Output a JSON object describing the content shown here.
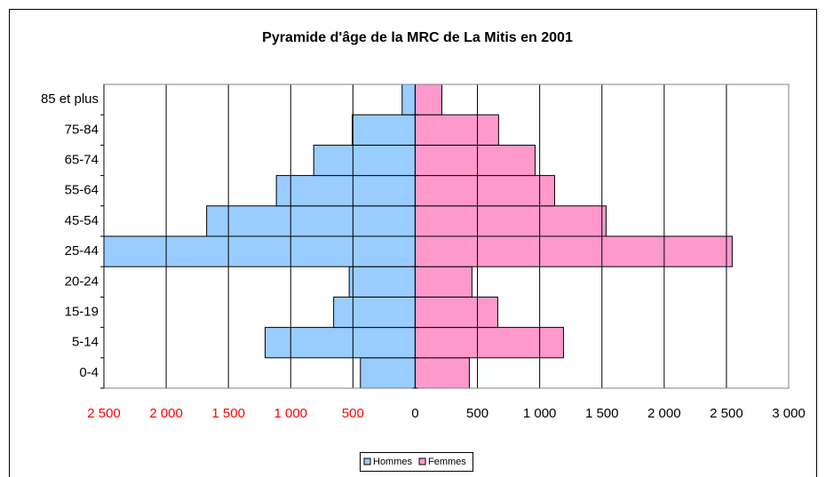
{
  "chart_data": {
    "type": "pyramid",
    "title": "Pyramide d'âge de la MRC de La Mitis en 2001",
    "categories": [
      "0-4",
      "5-14",
      "15-19",
      "20-24",
      "25-44",
      "45-54",
      "55-64",
      "65-74",
      "75-84",
      "85 et plus"
    ],
    "series": [
      {
        "name": "Hommes",
        "color": "#99ccff",
        "values": [
          -440,
          -1205,
          -655,
          -530,
          -2600,
          -1675,
          -1115,
          -815,
          -505,
          -105
        ]
      },
      {
        "name": "Femmes",
        "color": "#ff99cc",
        "values": [
          435,
          1191,
          663,
          456,
          2546,
          1533,
          1120,
          963,
          670,
          214
        ]
      }
    ],
    "xlim": [
      -2500,
      3000
    ],
    "xticks": [
      {
        "value": -2500,
        "label": "2 500"
      },
      {
        "value": -2000,
        "label": "2 000"
      },
      {
        "value": -1500,
        "label": "1 500"
      },
      {
        "value": -1000,
        "label": "1 000"
      },
      {
        "value": -500,
        "label": "500"
      },
      0,
      500,
      {
        "value": 1000,
        "label": "1 000"
      },
      {
        "value": 1500,
        "label": "1 500"
      },
      {
        "value": 2000,
        "label": "2 000"
      },
      {
        "value": 2500,
        "label": "2 500"
      },
      {
        "value": 3000,
        "label": "3 000"
      }
    ],
    "negative_tick_color": "#ff0000",
    "grid": true,
    "legend": "bottom"
  }
}
